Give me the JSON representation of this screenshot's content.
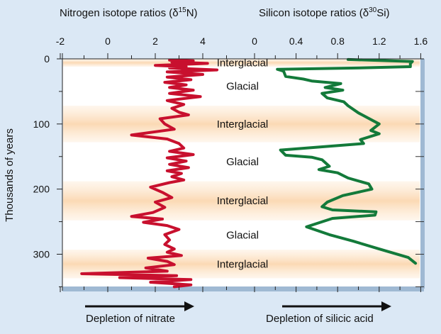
{
  "chart_data": {
    "type": "line",
    "title": "",
    "ylabel": "Thousands  of years",
    "y_axis": {
      "reversed": true,
      "range": [
        0,
        350
      ],
      "ticks": [
        "0",
        "100",
        "200",
        "300"
      ]
    },
    "x_axis_left": {
      "label_main": "Nitrogen isotope ratios  (δ",
      "label_sup": "15",
      "label_end": "N)",
      "range": [
        -2,
        5
      ],
      "ticks": [
        "-2",
        "0",
        "2",
        "4"
      ]
    },
    "x_axis_right": {
      "label_main": "Silicon isotope ratios  (δ",
      "label_sup": "30",
      "label_end": "Si)",
      "range": [
        -0.1,
        1.6
      ],
      "ticks": [
        "0",
        "0.4",
        "0.8",
        "1.2",
        "1.6"
      ]
    },
    "bands": [
      {
        "label": "Interglacial",
        "from": 0,
        "to": 12,
        "shaded": true
      },
      {
        "label": "Glacial",
        "from": 12,
        "to": 72,
        "shaded": false
      },
      {
        "label": "Interglacial",
        "from": 72,
        "to": 128,
        "shaded": true
      },
      {
        "label": "Glacial",
        "from": 128,
        "to": 188,
        "shaded": false
      },
      {
        "label": "Interglacial",
        "from": 188,
        "to": 248,
        "shaded": true
      },
      {
        "label": "Glacial",
        "from": 248,
        "to": 293,
        "shaded": false
      },
      {
        "label": "Interglacial",
        "from": 293,
        "to": 337,
        "shaded": true
      }
    ],
    "series": [
      {
        "axis": "left",
        "color": "#c8102e",
        "points": [
          [
            2.6,
            2
          ],
          [
            3.6,
            3
          ],
          [
            2.7,
            5
          ],
          [
            4.2,
            7
          ],
          [
            2.0,
            10
          ],
          [
            3.3,
            12
          ],
          [
            2.6,
            14
          ],
          [
            4.6,
            17
          ],
          [
            2.5,
            20
          ],
          [
            4.0,
            24
          ],
          [
            2.5,
            28
          ],
          [
            3.5,
            32
          ],
          [
            2.4,
            36
          ],
          [
            3.3,
            40
          ],
          [
            2.6,
            44
          ],
          [
            3.6,
            48
          ],
          [
            2.6,
            53
          ],
          [
            3.9,
            58
          ],
          [
            2.5,
            64
          ],
          [
            3.2,
            70
          ],
          [
            2.7,
            76
          ],
          [
            3.0,
            82
          ],
          [
            3.4,
            86
          ],
          [
            2.2,
            92
          ],
          [
            2.4,
            100
          ],
          [
            2.8,
            108
          ],
          [
            1.0,
            117
          ],
          [
            2.5,
            123
          ],
          [
            3.0,
            130
          ],
          [
            3.2,
            137
          ],
          [
            2.6,
            142
          ],
          [
            3.6,
            147
          ],
          [
            2.5,
            152
          ],
          [
            3.3,
            157
          ],
          [
            2.6,
            162
          ],
          [
            3.4,
            167
          ],
          [
            2.5,
            172
          ],
          [
            3.1,
            176
          ],
          [
            2.7,
            181
          ],
          [
            3.2,
            186
          ],
          [
            2.6,
            190
          ],
          [
            1.8,
            197
          ],
          [
            2.3,
            205
          ],
          [
            2.7,
            213
          ],
          [
            2.0,
            220
          ],
          [
            2.4,
            228
          ],
          [
            1.9,
            236
          ],
          [
            1.0,
            242
          ],
          [
            2.3,
            246
          ],
          [
            1.5,
            251
          ],
          [
            2.5,
            256
          ],
          [
            3.0,
            262
          ],
          [
            2.4,
            270
          ],
          [
            2.6,
            278
          ],
          [
            2.4,
            285
          ],
          [
            2.8,
            292
          ],
          [
            2.5,
            297
          ],
          [
            3.1,
            302
          ],
          [
            1.7,
            306
          ],
          [
            2.5,
            311
          ],
          [
            2.8,
            316
          ],
          [
            1.6,
            321
          ],
          [
            2.5,
            326
          ],
          [
            -1.1,
            330
          ],
          [
            2.9,
            333
          ],
          [
            0.5,
            336
          ],
          [
            3.5,
            339
          ],
          [
            1.8,
            343
          ],
          [
            3.5,
            347
          ],
          [
            2.8,
            350
          ]
        ]
      },
      {
        "axis": "right",
        "color": "#137a3a",
        "points": [
          [
            0.9,
            1
          ],
          [
            1.52,
            4
          ],
          [
            1.5,
            7
          ],
          [
            1.5,
            12
          ],
          [
            0.98,
            14
          ],
          [
            0.22,
            16
          ],
          [
            0.28,
            19
          ],
          [
            0.3,
            27
          ],
          [
            0.47,
            31
          ],
          [
            0.55,
            34
          ],
          [
            0.83,
            38
          ],
          [
            0.68,
            44
          ],
          [
            0.85,
            48
          ],
          [
            0.65,
            53
          ],
          [
            0.7,
            60
          ],
          [
            0.86,
            66
          ],
          [
            0.9,
            72
          ],
          [
            1.0,
            83
          ],
          [
            1.2,
            100
          ],
          [
            1.12,
            110
          ],
          [
            1.2,
            115
          ],
          [
            1.02,
            124
          ],
          [
            1.05,
            130
          ],
          [
            0.25,
            140
          ],
          [
            0.3,
            148
          ],
          [
            0.55,
            151
          ],
          [
            0.65,
            155
          ],
          [
            0.72,
            165
          ],
          [
            0.62,
            170
          ],
          [
            0.8,
            175
          ],
          [
            0.9,
            183
          ],
          [
            1.1,
            192
          ],
          [
            1.13,
            200
          ],
          [
            0.85,
            210
          ],
          [
            0.7,
            220
          ],
          [
            0.65,
            227
          ],
          [
            0.75,
            232
          ],
          [
            1.17,
            235
          ],
          [
            1.16,
            240
          ],
          [
            0.75,
            245
          ],
          [
            0.5,
            258
          ],
          [
            0.72,
            270
          ],
          [
            0.95,
            280
          ],
          [
            1.2,
            292
          ],
          [
            1.48,
            305
          ],
          [
            1.55,
            314
          ]
        ]
      }
    ],
    "bottom_labels": [
      "Depletion of nitrate",
      "Depletion of silicic acid"
    ]
  }
}
